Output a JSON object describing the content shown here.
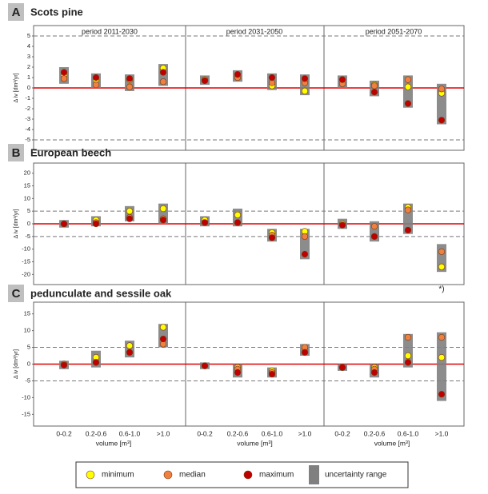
{
  "periods": [
    "period 2011-2030",
    "period 2031-2050",
    "period 2051-2070"
  ],
  "categories": [
    "0-0.2",
    "0.2-0.6",
    "0.6-1.0",
    ">1.0"
  ],
  "xlabel": "volume [m³]",
  "legend": [
    {
      "name": "minimum",
      "color": "#ffff00"
    },
    {
      "name": "median",
      "color": "#f08040"
    },
    {
      "name": "maximum",
      "color": "#c00000"
    },
    {
      "name": "uncertainty range",
      "color": "#808080"
    }
  ],
  "chart_data": [
    {
      "type": "scatter",
      "label": "A",
      "title": "Scots pine",
      "ylabel": "Δ iv [dm³/yr]",
      "ylim": [
        -6,
        6
      ],
      "yticks": [
        5,
        4,
        3,
        2,
        1,
        0,
        -1,
        -2,
        -3,
        -4,
        -5
      ],
      "zero_line": 0,
      "dashed_lines": [
        5,
        -5
      ],
      "series": [
        {
          "name": "minimum",
          "color": "#ffff00",
          "values": [
            [
              1.2,
              0.8,
              0.8,
              1.9
            ],
            [
              0.8,
              1.0,
              0.2,
              -0.3
            ],
            [
              0.8,
              0.3,
              0.1,
              -0.5
            ]
          ]
        },
        {
          "name": "median",
          "color": "#f08040",
          "values": [
            [
              0.9,
              0.3,
              0.1,
              0.6
            ],
            [
              0.7,
              1.0,
              0.5,
              0.5
            ],
            [
              0.4,
              0.2,
              0.8,
              -0.1
            ]
          ]
        },
        {
          "name": "maximum",
          "color": "#c00000",
          "values": [
            [
              1.5,
              1.0,
              0.9,
              1.5
            ],
            [
              0.7,
              1.3,
              1.0,
              0.9
            ],
            [
              0.8,
              -0.4,
              -1.5,
              -3.1
            ]
          ]
        },
        {
          "name": "uncertainty range",
          "color": "#808080",
          "low": [
            [
              0.4,
              0,
              -0.3,
              0.2
            ],
            [
              0.3,
              0.6,
              -0.2,
              -0.7
            ],
            [
              0,
              -0.8,
              -1.9,
              -3.5
            ]
          ],
          "high": [
            [
              2.0,
              1.4,
              1.3,
              2.3
            ],
            [
              1.2,
              1.7,
              1.4,
              1.3
            ],
            [
              1.2,
              0.7,
              1.2,
              0.4
            ]
          ]
        }
      ]
    },
    {
      "type": "scatter",
      "label": "B",
      "title": "European beech",
      "ylabel": "Δ iv [dm³/yr]",
      "ylim": [
        -24,
        24
      ],
      "yticks": [
        20,
        15,
        10,
        5,
        0,
        -5,
        -10,
        -15,
        -20
      ],
      "zero_line": 0,
      "dashed_lines": [
        5,
        -5
      ],
      "annotation": "*)",
      "series": [
        {
          "name": "minimum",
          "color": "#ffff00",
          "values": [
            [
              0,
              1.5,
              5,
              6
            ],
            [
              1.5,
              3.5,
              -3.5,
              -3
            ],
            [
              0,
              -5,
              6.5,
              -17
            ]
          ]
        },
        {
          "name": "median",
          "color": "#f08040",
          "values": [
            [
              0,
              0.5,
              2.5,
              2
            ],
            [
              0.5,
              0.5,
              -4.5,
              -5
            ],
            [
              -0.5,
              -1,
              5.5,
              -11
            ]
          ]
        },
        {
          "name": "maximum",
          "color": "#c00000",
          "values": [
            [
              0,
              0,
              2,
              1.5
            ],
            [
              0.5,
              0.5,
              -5.5,
              -12
            ],
            [
              -0.5,
              -5,
              -2.5,
              null
            ]
          ]
        },
        {
          "name": "uncertainty range",
          "color": "#808080",
          "low": [
            [
              -1.5,
              -1,
              1,
              0
            ],
            [
              -1,
              -1,
              -7,
              -14
            ],
            [
              -2,
              -7,
              -4,
              -19
            ]
          ],
          "high": [
            [
              1.5,
              3,
              7,
              8
            ],
            [
              3,
              6,
              -2,
              -2
            ],
            [
              2,
              1,
              8,
              -8
            ]
          ]
        }
      ]
    },
    {
      "type": "scatter",
      "label": "C",
      "title": "pedunculate and sessile oak",
      "ylabel": "Δ iv [dm³/yr]",
      "ylim": [
        -18.5,
        18.5
      ],
      "yticks": [
        15,
        10,
        5,
        0,
        -5,
        -10,
        -15
      ],
      "zero_line": 0,
      "dashed_lines": [
        5,
        -5
      ],
      "series": [
        {
          "name": "minimum",
          "color": "#ffff00",
          "values": [
            [
              0,
              2,
              5.5,
              11
            ],
            [
              -0.5,
              -1,
              -2,
              4.5
            ],
            [
              -1,
              -1,
              2.5,
              2
            ]
          ]
        },
        {
          "name": "median",
          "color": "#f08040",
          "values": [
            [
              0,
              0.5,
              3.5,
              6
            ],
            [
              -0.5,
              -1.5,
              -2.5,
              5
            ],
            [
              -1,
              -1.5,
              8,
              8
            ]
          ]
        },
        {
          "name": "maximum",
          "color": "#c00000",
          "values": [
            [
              -0.3,
              0.5,
              3.5,
              7.5
            ],
            [
              -0.5,
              -2.5,
              -3,
              3.5
            ],
            [
              -1,
              -2.5,
              0.5,
              -9
            ]
          ]
        },
        {
          "name": "uncertainty range",
          "color": "#808080",
          "low": [
            [
              -1.5,
              -1,
              2,
              5
            ],
            [
              -1.5,
              -4,
              -4,
              2.5
            ],
            [
              -2,
              -4,
              -1,
              -11
            ]
          ],
          "high": [
            [
              1,
              4,
              7,
              12
            ],
            [
              0.5,
              0,
              -1,
              6
            ],
            [
              0,
              0,
              9,
              9.5
            ]
          ]
        }
      ]
    }
  ]
}
